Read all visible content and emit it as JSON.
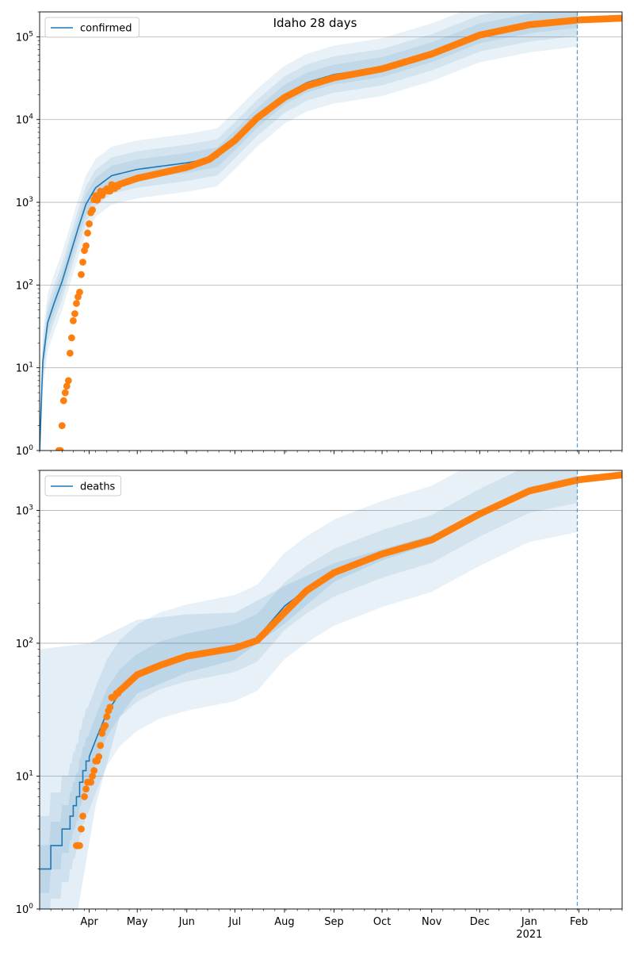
{
  "figure": {
    "title": "Idaho 28 days"
  },
  "colors": {
    "model": "#1f77b4",
    "observed": "#ff7f0e",
    "band": "#1f77b4",
    "grid": "#b0b0b0",
    "vline": "#1f77b4"
  },
  "x_axis": {
    "start": "2020-03-01",
    "end": "2021-02-28",
    "month_labels": [
      "Apr",
      "May",
      "Jun",
      "Jul",
      "Aug",
      "Sep",
      "Oct",
      "Nov",
      "Dec",
      "Jan",
      "Feb"
    ],
    "month_dates": [
      "2020-04-01",
      "2020-05-01",
      "2020-06-01",
      "2020-07-01",
      "2020-08-01",
      "2020-09-01",
      "2020-10-01",
      "2020-11-01",
      "2020-12-01",
      "2021-01-01",
      "2021-02-01"
    ],
    "year_label": "2021",
    "forecast_start": "2021-01-31"
  },
  "chart_data": [
    {
      "type": "line",
      "legend": "confirmed",
      "legend_loc": "upper-left",
      "yscale": "log",
      "ylim": [
        1,
        200000
      ],
      "yticks": [
        1,
        10,
        100,
        1000,
        10000,
        100000
      ],
      "ytick_labels": [
        [
          "10",
          "0"
        ],
        [
          "10",
          "1"
        ],
        [
          "10",
          "2"
        ],
        [
          "10",
          "3"
        ],
        [
          "10",
          "4"
        ],
        [
          "10",
          "5"
        ]
      ],
      "grid": "y",
      "model_knots": [
        [
          "2020-03-01",
          1
        ],
        [
          "2020-03-03",
          12
        ],
        [
          "2020-03-06",
          35
        ],
        [
          "2020-03-10",
          60
        ],
        [
          "2020-03-15",
          110
        ],
        [
          "2020-03-20",
          230
        ],
        [
          "2020-03-25",
          480
        ],
        [
          "2020-03-30",
          950
        ],
        [
          "2020-04-05",
          1500
        ],
        [
          "2020-04-15",
          2100
        ],
        [
          "2020-05-01",
          2500
        ],
        [
          "2020-06-01",
          3000
        ],
        [
          "2020-06-20",
          3500
        ],
        [
          "2020-07-01",
          5600
        ],
        [
          "2020-07-15",
          10500
        ],
        [
          "2020-08-01",
          20000
        ],
        [
          "2020-08-15",
          28000
        ],
        [
          "2020-09-01",
          35000
        ],
        [
          "2020-10-01",
          43000
        ],
        [
          "2020-11-01",
          65000
        ],
        [
          "2020-12-01",
          110000
        ],
        [
          "2021-01-01",
          145000
        ],
        [
          "2021-01-31",
          170000
        ]
      ],
      "band_multipliers": [
        0.12,
        0.22,
        0.35
      ],
      "observed_knots": [
        [
          "2020-03-13",
          1
        ],
        [
          "2020-03-15",
          2
        ],
        [
          "2020-03-16",
          4
        ],
        [
          "2020-03-19",
          8
        ],
        [
          "2020-03-21",
          23
        ],
        [
          "2020-03-22",
          38
        ],
        [
          "2020-03-25",
          70
        ],
        [
          "2020-03-26",
          90
        ],
        [
          "2020-03-28",
          200
        ],
        [
          "2020-03-30",
          320
        ],
        [
          "2020-04-01",
          550
        ],
        [
          "2020-04-02",
          800
        ],
        [
          "2020-04-05",
          1100
        ],
        [
          "2020-04-10",
          1350
        ],
        [
          "2020-04-20",
          1650
        ],
        [
          "2020-05-01",
          1950
        ],
        [
          "2020-06-01",
          2650
        ],
        [
          "2020-06-15",
          3300
        ],
        [
          "2020-07-01",
          5600
        ],
        [
          "2020-07-15",
          10500
        ],
        [
          "2020-08-01",
          18500
        ],
        [
          "2020-08-15",
          25500
        ],
        [
          "2020-09-01",
          32000
        ],
        [
          "2020-10-01",
          41000
        ],
        [
          "2020-11-01",
          62000
        ],
        [
          "2020-12-01",
          105000
        ],
        [
          "2021-01-01",
          140000
        ],
        [
          "2021-02-01",
          160000
        ],
        [
          "2021-02-28",
          168000
        ]
      ]
    },
    {
      "type": "line",
      "legend": "deaths",
      "legend_loc": "upper-left",
      "yscale": "log",
      "ylim": [
        1,
        2000
      ],
      "yticks": [
        1,
        10,
        100,
        1000
      ],
      "ytick_labels": [
        [
          "10",
          "0"
        ],
        [
          "10",
          "1"
        ],
        [
          "10",
          "2"
        ],
        [
          "10",
          "3"
        ]
      ],
      "grid": "y",
      "model_steps": [
        [
          "2020-03-01",
          2
        ],
        [
          "2020-03-08",
          3
        ],
        [
          "2020-03-15",
          4
        ],
        [
          "2020-03-20",
          5
        ],
        [
          "2020-03-22",
          6
        ],
        [
          "2020-03-24",
          7
        ],
        [
          "2020-03-26",
          9
        ],
        [
          "2020-03-28",
          11
        ],
        [
          "2020-03-30",
          13
        ],
        [
          "2020-04-01",
          14
        ]
      ],
      "model_knots": [
        [
          "2020-04-01",
          14
        ],
        [
          "2020-04-06",
          20
        ],
        [
          "2020-04-12",
          30
        ],
        [
          "2020-04-20",
          42
        ],
        [
          "2020-05-01",
          55
        ],
        [
          "2020-05-15",
          68
        ],
        [
          "2020-06-01",
          78
        ],
        [
          "2020-07-01",
          92
        ],
        [
          "2020-07-15",
          110
        ],
        [
          "2020-08-01",
          190
        ],
        [
          "2020-08-15",
          255
        ],
        [
          "2020-09-01",
          340
        ],
        [
          "2020-10-01",
          470
        ],
        [
          "2020-11-01",
          610
        ],
        [
          "2020-12-01",
          960
        ],
        [
          "2021-01-01",
          1450
        ],
        [
          "2021-01-31",
          1720
        ]
      ],
      "band_outer_upper": [
        [
          "2020-03-01",
          90
        ],
        [
          "2020-04-01",
          100
        ],
        [
          "2020-05-01",
          150
        ],
        [
          "2020-06-01",
          165
        ],
        [
          "2020-07-01",
          170
        ],
        [
          "2020-08-01",
          270
        ],
        [
          "2020-09-01",
          400
        ],
        [
          "2020-10-01",
          510
        ],
        [
          "2020-11-01",
          650
        ],
        [
          "2020-12-01",
          1000
        ],
        [
          "2021-01-01",
          1500
        ],
        [
          "2021-01-31",
          1820
        ]
      ],
      "band_outer_lower": [
        [
          "2020-03-01",
          1
        ],
        [
          "2020-03-25",
          1
        ],
        [
          "2020-04-05",
          6
        ],
        [
          "2020-04-20",
          28
        ],
        [
          "2020-05-01",
          42
        ],
        [
          "2020-06-01",
          60
        ],
        [
          "2020-07-01",
          75
        ],
        [
          "2020-08-01",
          140
        ],
        [
          "2020-09-01",
          290
        ],
        [
          "2020-10-01",
          420
        ],
        [
          "2020-11-01",
          560
        ],
        [
          "2020-12-01",
          900
        ],
        [
          "2021-01-01",
          1380
        ],
        [
          "2021-01-31",
          1640
        ]
      ],
      "band_multipliers": [
        0.18,
        0.4
      ],
      "observed_knots": [
        [
          "2020-03-24",
          3
        ],
        [
          "2020-03-26",
          3
        ],
        [
          "2020-03-27",
          4
        ],
        [
          "2020-03-28",
          5
        ],
        [
          "2020-03-29",
          6
        ],
        [
          "2020-03-30",
          8
        ],
        [
          "2020-04-01",
          9
        ],
        [
          "2020-04-03",
          10
        ],
        [
          "2020-04-06",
          13
        ],
        [
          "2020-04-08",
          18
        ],
        [
          "2020-04-10",
          25
        ],
        [
          "2020-04-14",
          32
        ],
        [
          "2020-04-16",
          40
        ],
        [
          "2020-04-22",
          46
        ],
        [
          "2020-05-01",
          58
        ],
        [
          "2020-05-15",
          68
        ],
        [
          "2020-06-01",
          80
        ],
        [
          "2020-07-01",
          92
        ],
        [
          "2020-07-15",
          105
        ],
        [
          "2020-08-01",
          170
        ],
        [
          "2020-08-15",
          250
        ],
        [
          "2020-09-01",
          340
        ],
        [
          "2020-10-01",
          470
        ],
        [
          "2020-11-01",
          600
        ],
        [
          "2020-12-01",
          940
        ],
        [
          "2021-01-01",
          1400
        ],
        [
          "2021-02-01",
          1700
        ],
        [
          "2021-02-28",
          1850
        ]
      ]
    }
  ]
}
